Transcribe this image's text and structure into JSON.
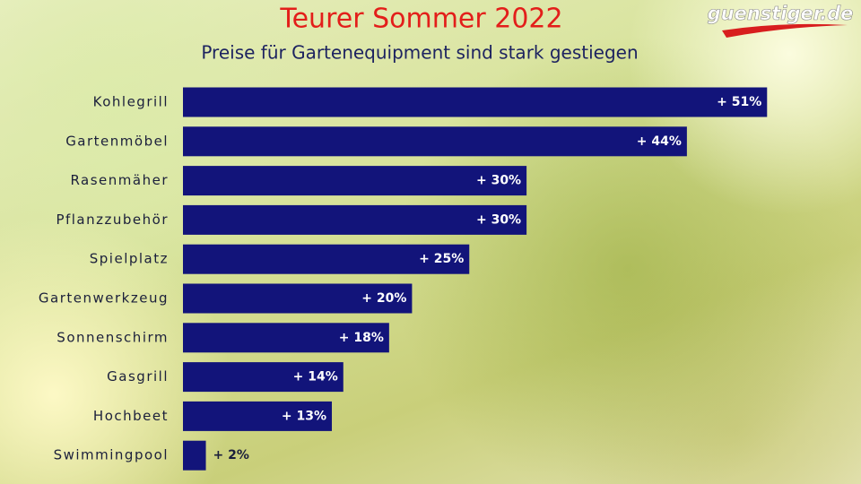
{
  "brand": "guenstiger.de",
  "chart_data": {
    "type": "bar",
    "orientation": "horizontal",
    "title": "Teurer Sommer 2022",
    "subtitle": "Preise für Gartenequipment sind stark gestiegen",
    "categories": [
      "Kohlegrill",
      "Gartenmöbel",
      "Rasenmäher",
      "Pflanzzubehör",
      "Spielplatz",
      "Gartenwerkzeug",
      "Sonnenschirm",
      "Gasgrill",
      "Hochbeet",
      "Swimmingpool"
    ],
    "values": [
      51,
      44,
      30,
      30,
      25,
      20,
      18,
      14,
      13,
      2
    ],
    "value_labels": [
      "+ 51%",
      "+ 44%",
      "+ 30%",
      "+ 30%",
      "+ 25%",
      "+ 20%",
      "+ 18%",
      "+ 14%",
      "+ 13%",
      "+ 2%"
    ],
    "color": "#12147a"
  }
}
